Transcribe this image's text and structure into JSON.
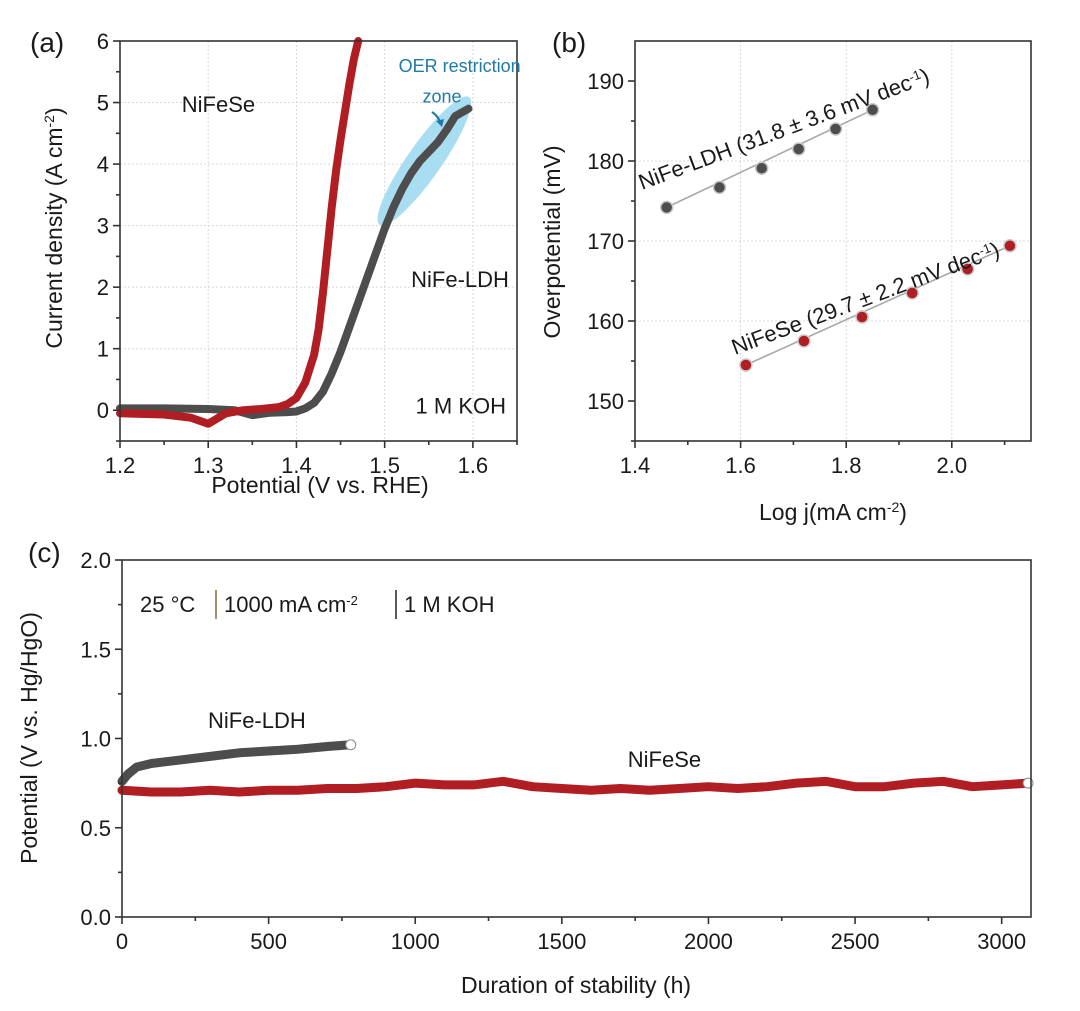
{
  "colors": {
    "nifese": "#b01e23",
    "nife_ldh": "#4d4d4d",
    "oer_zone": "#a9def2",
    "oer_text": "#1e7aa6",
    "fit_line": "#a8a8a8"
  },
  "chart_data": [
    {
      "id": "a",
      "type": "line",
      "panel_label": "(a)",
      "title": "",
      "xlabel": "Potential (V vs. RHE)",
      "ylabel": "Current density (A cm",
      "ylabel_sup": "-2",
      "ylabel_end": ")",
      "xlim": [
        1.2,
        1.65
      ],
      "ylim": [
        -0.5,
        6
      ],
      "xticks": [
        1.2,
        1.3,
        1.4,
        1.5,
        1.6
      ],
      "xtick_labels": [
        "1.2",
        "1.3",
        "1.4",
        "1.5",
        "1.6"
      ],
      "xminor": [
        1.25,
        1.35,
        1.45,
        1.55,
        1.65
      ],
      "yticks": [
        0,
        1,
        2,
        3,
        4,
        5,
        6
      ],
      "ytick_labels": [
        "0",
        "1",
        "2",
        "3",
        "4",
        "5",
        "6"
      ],
      "yminor": [
        -0.5,
        0.5,
        1.5,
        2.5,
        3.5,
        4.5,
        5.5
      ],
      "grid": true,
      "series": [
        {
          "name": "NiFe-LDH",
          "color_key": "nife_ldh",
          "x": [
            1.2,
            1.25,
            1.3,
            1.33,
            1.35,
            1.37,
            1.39,
            1.4,
            1.41,
            1.42,
            1.43,
            1.44,
            1.45,
            1.46,
            1.47,
            1.48,
            1.49,
            1.5,
            1.51,
            1.52,
            1.53,
            1.54,
            1.55,
            1.56,
            1.57,
            1.58,
            1.595
          ],
          "y": [
            0.03,
            0.03,
            0.02,
            0.0,
            -0.08,
            -0.04,
            -0.03,
            -0.02,
            0.03,
            0.12,
            0.3,
            0.6,
            0.95,
            1.35,
            1.75,
            2.15,
            2.55,
            2.95,
            3.3,
            3.6,
            3.85,
            4.05,
            4.2,
            4.35,
            4.55,
            4.78,
            4.9
          ]
        },
        {
          "name": "NiFeSe",
          "color_key": "nifese",
          "x": [
            1.2,
            1.25,
            1.28,
            1.3,
            1.32,
            1.34,
            1.36,
            1.38,
            1.39,
            1.4,
            1.41,
            1.42,
            1.425,
            1.43,
            1.435,
            1.44,
            1.445,
            1.45,
            1.455,
            1.46,
            1.465,
            1.47
          ],
          "y": [
            -0.05,
            -0.07,
            -0.12,
            -0.22,
            -0.05,
            0.0,
            0.02,
            0.05,
            0.1,
            0.2,
            0.45,
            0.9,
            1.3,
            1.9,
            2.6,
            3.3,
            3.9,
            4.4,
            4.85,
            5.3,
            5.7,
            6.0
          ]
        }
      ],
      "annotations": [
        {
          "text": "NiFeSe",
          "x": 1.27,
          "y": 4.85
        },
        {
          "text": "NiFe-LDH",
          "x": 1.53,
          "y": 2.0
        },
        {
          "text": "1 M KOH",
          "x": 1.535,
          "y": -0.05
        },
        {
          "text": "OER restriction",
          "x": 1.585,
          "y": 5.5,
          "style": "blue"
        },
        {
          "text": "zone",
          "x": 1.565,
          "y": 5.0,
          "style": "blue"
        }
      ],
      "highlight_region": {
        "label": "OER restriction zone",
        "center": [
          1.545,
          4.05
        ],
        "angle_deg": -55
      }
    },
    {
      "id": "b",
      "type": "scatter",
      "panel_label": "(b)",
      "title": "",
      "xlabel": "Log j(mA cm",
      "xlabel_sup": "-2",
      "xlabel_end": ")",
      "ylabel": "Overpotential (mV)",
      "xlim": [
        1.4,
        2.15
      ],
      "ylim": [
        145,
        195
      ],
      "xticks": [
        1.4,
        1.6,
        1.8,
        2.0
      ],
      "xtick_labels": [
        "1.4",
        "1.6",
        "1.8",
        "2.0"
      ],
      "xminor": [
        1.5,
        1.7,
        1.9,
        2.1
      ],
      "yticks": [
        150,
        160,
        170,
        180,
        190
      ],
      "ytick_labels": [
        "150",
        "160",
        "170",
        "180",
        "190"
      ],
      "yminor": [
        145,
        155,
        165,
        175,
        185
      ],
      "grid": true,
      "series": [
        {
          "name": "NiFe-LDH",
          "label": "NiFe-LDH (31.8 ± 3.6 mV dec",
          "label_sup": "-1",
          "label_end": ")",
          "color_key": "nife_ldh",
          "x": [
            1.46,
            1.56,
            1.64,
            1.71,
            1.78,
            1.85
          ],
          "y": [
            174.2,
            176.7,
            179.1,
            181.5,
            184.0,
            186.4
          ]
        },
        {
          "name": "NiFeSe",
          "label": "NiFeSe (29.7 ± 2.2 mV dec",
          "label_sup": "-1",
          "label_end": ")",
          "color_key": "nifese",
          "x": [
            1.61,
            1.72,
            1.83,
            1.925,
            2.03,
            2.11
          ],
          "y": [
            154.5,
            157.5,
            160.5,
            163.5,
            166.5,
            169.4
          ]
        }
      ]
    },
    {
      "id": "c",
      "type": "line",
      "panel_label": "(c)",
      "title": "",
      "xlabel": "Duration of stability (h)",
      "ylabel": "Potential (V vs. Hg/HgO)",
      "xlim": [
        0,
        3100
      ],
      "ylim": [
        0,
        2.0
      ],
      "xticks": [
        0,
        500,
        1000,
        1500,
        2000,
        2500,
        3000
      ],
      "xtick_labels": [
        "0",
        "500",
        "1000",
        "1500",
        "2000",
        "2500",
        "3000"
      ],
      "xminor": [
        250,
        750,
        1250,
        1750,
        2250,
        2750
      ],
      "yticks": [
        0,
        0.5,
        1.0,
        1.5,
        2.0
      ],
      "ytick_labels": [
        "0.0",
        "0.5",
        "1.0",
        "1.5",
        "2.0"
      ],
      "yminor": [
        0.25,
        0.75,
        1.25,
        1.75
      ],
      "grid": false,
      "conditions": [
        "25 °C",
        "1000 mA cm",
        "-2",
        "1 M KOH"
      ],
      "series": [
        {
          "name": "NiFe-LDH",
          "color_key": "nife_ldh",
          "x": [
            0,
            20,
            50,
            100,
            150,
            200,
            300,
            400,
            500,
            600,
            700,
            780
          ],
          "y": [
            0.76,
            0.8,
            0.84,
            0.86,
            0.87,
            0.88,
            0.9,
            0.92,
            0.93,
            0.94,
            0.955,
            0.965
          ]
        },
        {
          "name": "NiFeSe",
          "color_key": "nifese",
          "x": [
            0,
            100,
            200,
            300,
            400,
            500,
            600,
            700,
            800,
            900,
            1000,
            1100,
            1200,
            1300,
            1400,
            1500,
            1600,
            1700,
            1800,
            1900,
            2000,
            2100,
            2200,
            2300,
            2400,
            2500,
            2600,
            2700,
            2800,
            2900,
            3000,
            3090
          ],
          "y": [
            0.71,
            0.7,
            0.7,
            0.71,
            0.7,
            0.71,
            0.71,
            0.72,
            0.72,
            0.73,
            0.75,
            0.74,
            0.74,
            0.76,
            0.73,
            0.72,
            0.71,
            0.72,
            0.71,
            0.72,
            0.73,
            0.72,
            0.73,
            0.75,
            0.76,
            0.73,
            0.73,
            0.75,
            0.76,
            0.73,
            0.74,
            0.75
          ]
        }
      ],
      "annotations": [
        {
          "text": "NiFe-LDH",
          "x": 460,
          "y": 1.06
        },
        {
          "text": "NiFeSe",
          "x": 1850,
          "y": 0.84
        }
      ]
    }
  ]
}
